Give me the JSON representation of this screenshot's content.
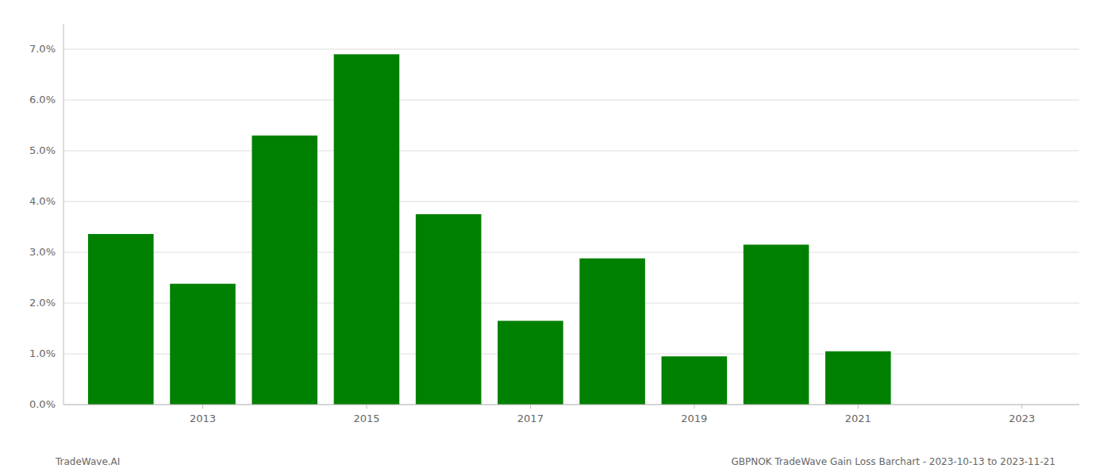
{
  "chart_data": {
    "type": "bar",
    "x": [
      2012,
      2013,
      2014,
      2015,
      2016,
      2017,
      2018,
      2019,
      2020,
      2021,
      2022
    ],
    "values": [
      0.0336,
      0.0238,
      0.053,
      0.069,
      0.0375,
      0.0165,
      0.0288,
      0.0095,
      0.0315,
      0.0105,
      0.0
    ],
    "color": "#008000",
    "xlim": [
      2011.3,
      2023.7
    ],
    "xticks": [
      2013,
      2015,
      2017,
      2019,
      2021,
      2023
    ],
    "ylim": [
      0,
      0.075
    ],
    "yticks": [
      {
        "value": 0.0,
        "label": "0.0%"
      },
      {
        "value": 0.01,
        "label": "1.0%"
      },
      {
        "value": 0.02,
        "label": "2.0%"
      },
      {
        "value": 0.03,
        "label": "3.0%"
      },
      {
        "value": 0.04,
        "label": "4.0%"
      },
      {
        "value": 0.05,
        "label": "5.0%"
      },
      {
        "value": 0.06,
        "label": "6.0%"
      },
      {
        "value": 0.07,
        "label": "7.0%"
      }
    ],
    "grid": true,
    "annotations": [
      "TradeWave.AI",
      "GBPNOK TradeWave Gain Loss Barchart - 2023-10-13 to 2023-11-21"
    ]
  }
}
